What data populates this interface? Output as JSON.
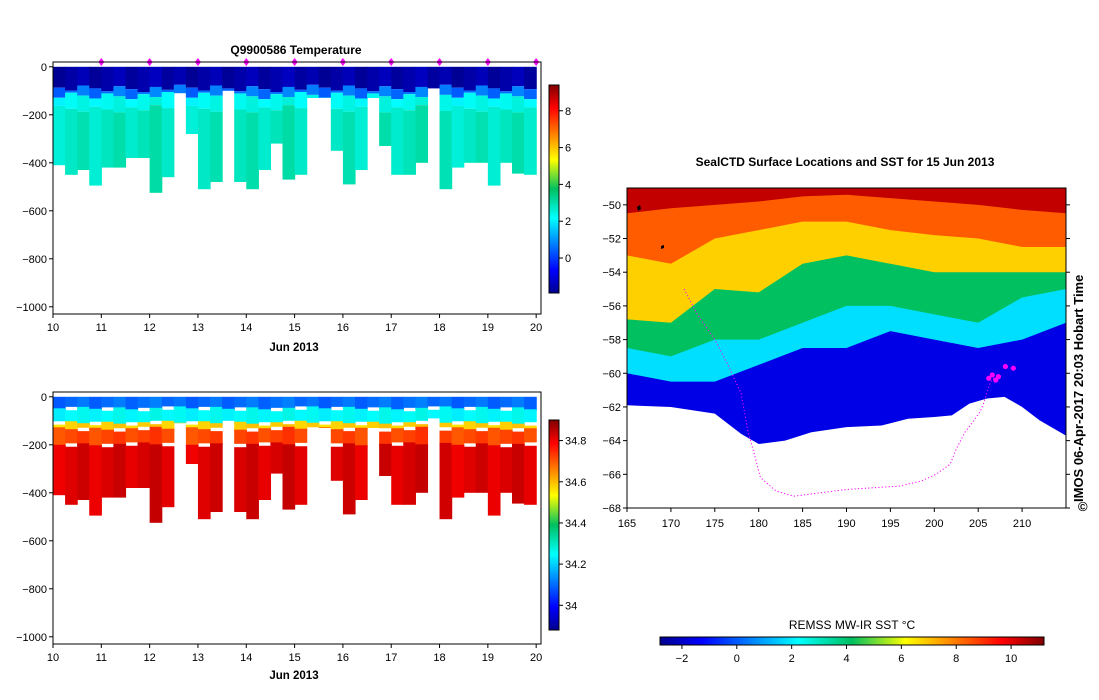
{
  "colors": {
    "profile_marker": "#ff00ff",
    "land": "#ffffff",
    "axis": "#000000"
  },
  "chart_data": [
    {
      "id": "temperature_section",
      "type": "heatmap",
      "title": "Q9900586  Temperature",
      "xlabel": "Jun 2013",
      "ylabel": "",
      "xlim": [
        10,
        20.1
      ],
      "ylim": [
        -1030,
        20
      ],
      "xticks": [
        10,
        11,
        12,
        13,
        14,
        15,
        16,
        17,
        18,
        19,
        20
      ],
      "yticks": [
        0,
        -200,
        -400,
        -600,
        -800,
        -1000
      ],
      "profile_markers_x": [
        11,
        12,
        13,
        14,
        15,
        16,
        17,
        18,
        19,
        20
      ],
      "casts": {
        "x": [
          10,
          10.25,
          10.5,
          10.75,
          11,
          11.25,
          11.5,
          11.75,
          12,
          12.25,
          12.5,
          12.75,
          13,
          13.25,
          13.5,
          13.75,
          14,
          14.25,
          14.5,
          14.75,
          15,
          15.25,
          15.5,
          15.75,
          16,
          16.25,
          16.5,
          16.75,
          17,
          17.25,
          17.5,
          17.75,
          18,
          18.25,
          18.5,
          18.75,
          19,
          19.25,
          19.5,
          19.75
        ],
        "max_depth": [
          410,
          450,
          430,
          495,
          420,
          420,
          380,
          380,
          525,
          460,
          110,
          280,
          510,
          480,
          100,
          480,
          510,
          430,
          320,
          470,
          450,
          130,
          130,
          350,
          490,
          430,
          130,
          330,
          450,
          450,
          400,
          90,
          510,
          420,
          400,
          400,
          495,
          400,
          445,
          450
        ]
      },
      "layers_c": [
        {
          "from": 0,
          "to": 90,
          "value": -1.6
        },
        {
          "from": 90,
          "to": 120,
          "value": 0.6
        },
        {
          "from": 120,
          "to": 175,
          "value": 2.3
        },
        {
          "from": 175,
          "to": 1000,
          "value": 2.8
        }
      ],
      "colorbar": {
        "min": -1.9,
        "max": 9.4,
        "ticks": [
          0,
          2,
          4,
          6,
          8
        ],
        "tick_labels": [
          "0",
          "2",
          "4",
          "6",
          "8"
        ]
      }
    },
    {
      "id": "salinity_section",
      "type": "heatmap",
      "title": "",
      "xlabel": "Jun 2013",
      "ylabel": "",
      "xlim": [
        10,
        20.1
      ],
      "ylim": [
        -1030,
        20
      ],
      "xticks": [
        10,
        11,
        12,
        13,
        14,
        15,
        16,
        17,
        18,
        19,
        20
      ],
      "yticks": [
        0,
        -200,
        -400,
        -600,
        -800,
        -1000
      ],
      "layers_psu": [
        {
          "from": 0,
          "to": 50,
          "value": 34.1
        },
        {
          "from": 50,
          "to": 110,
          "value": 34.25
        },
        {
          "from": 110,
          "to": 135,
          "value": 34.58
        },
        {
          "from": 135,
          "to": 200,
          "value": 34.72
        },
        {
          "from": 200,
          "to": 1000,
          "value": 34.82
        }
      ],
      "colorbar": {
        "min": 33.88,
        "max": 34.9,
        "ticks": [
          34.0,
          34.2,
          34.4,
          34.6,
          34.8
        ],
        "tick_labels": [
          "34",
          "34.2",
          "34.4",
          "34.6",
          "34.8"
        ]
      }
    },
    {
      "id": "sst_map",
      "type": "heatmap",
      "title": "SealCTD Surface Locations and SST for 15 Jun 2013",
      "xlabel": "",
      "ylabel": "",
      "xlim": [
        165,
        215
      ],
      "ylim": [
        -68,
        -49
      ],
      "xticks": [
        165,
        170,
        175,
        180,
        185,
        190,
        195,
        200,
        205,
        210
      ],
      "yticks": [
        -50,
        -52,
        -54,
        -56,
        -58,
        -60,
        -62,
        -64,
        -66,
        -68
      ],
      "ice_edge": {
        "lon": [
          165,
          170,
          175,
          178,
          180,
          183,
          186,
          190,
          194,
          197,
          200,
          202,
          204,
          206,
          208,
          210,
          212,
          215
        ],
        "lat": [
          -61.9,
          -62.0,
          -62.4,
          -63.6,
          -64.2,
          -64.0,
          -63.5,
          -63.2,
          -63.1,
          -62.7,
          -62.6,
          -62.5,
          -61.8,
          -61.5,
          -61.4,
          -62.0,
          -62.8,
          -63.7
        ]
      },
      "fronts": {
        "lon": [
          165,
          170,
          175,
          180,
          185,
          190,
          195,
          200,
          205,
          210,
          215
        ],
        "lat_10C": [
          -50.5,
          -50.2,
          -50.0,
          -49.8,
          -49.5,
          -49.4,
          -49.6,
          -49.8,
          -50.0,
          -50.3,
          -50.5
        ],
        "lat_8C": [
          -53.0,
          -53.5,
          -52.0,
          -51.5,
          -51.0,
          -51.0,
          -51.5,
          -51.8,
          -52.0,
          -52.5,
          -52.5
        ],
        "lat_6C": [
          -56.8,
          -57.0,
          -55.0,
          -55.2,
          -53.5,
          -53.0,
          -53.5,
          -54.0,
          -54.0,
          -54.0,
          -54.0
        ],
        "lat_3C": [
          -58.5,
          -59.0,
          -58.0,
          -58.0,
          -57.0,
          -56.0,
          -56.0,
          -56.5,
          -57.0,
          -55.5,
          -55.0
        ],
        "lat_1C": [
          -60.0,
          -60.5,
          -60.5,
          -59.5,
          -58.5,
          -58.5,
          -57.5,
          -58.0,
          -58.5,
          -58.0,
          -57.0
        ]
      },
      "track": {
        "lon": [
          171.5,
          173,
          175,
          176.5,
          178,
          178.8,
          179.5,
          180.2,
          182,
          184,
          187,
          190,
          193,
          196,
          198.5,
          200.2,
          201.8,
          202.5,
          203.5,
          204.5,
          205.2,
          205.6,
          205.9,
          206.1,
          206.4,
          206.8,
          207.2
        ],
        "lat": [
          -55,
          -56.5,
          -58,
          -59.5,
          -61.2,
          -63.5,
          -64.8,
          -66.2,
          -67,
          -67.3,
          -67.1,
          -66.9,
          -66.8,
          -66.7,
          -66.4,
          -66.0,
          -65.4,
          -64.5,
          -63.5,
          -62.8,
          -62.3,
          -61.8,
          -61.3,
          -61,
          -60.5,
          -60.3,
          -60.2
        ]
      },
      "surface_locations": {
        "lon": [
          206.2,
          206.6,
          207.0,
          207.3,
          208.1,
          209.0
        ],
        "lat": [
          -60.3,
          -60.1,
          -60.4,
          -60.2,
          -59.6,
          -59.7
        ]
      },
      "colorbar": {
        "label": "REMSS MW-IR SST °C",
        "min": -2.8,
        "max": 11.2,
        "ticks": [
          -2,
          0,
          2,
          4,
          6,
          8,
          10
        ],
        "tick_labels": [
          "-2",
          "0",
          "2",
          "4",
          "6",
          "8",
          "10"
        ]
      }
    }
  ],
  "map_side_label": "IMOS 06-Apr-2017 20:03 Hobart Time",
  "copyright_symbol": "©"
}
